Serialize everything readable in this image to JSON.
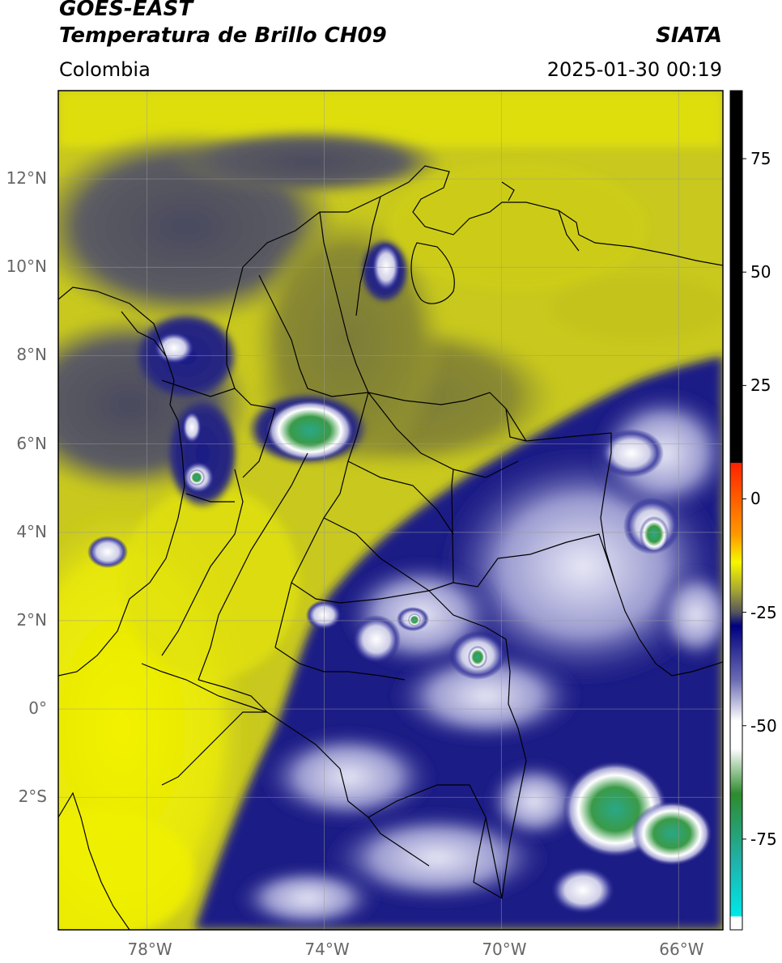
{
  "header": {
    "satellite": "GOES-EAST",
    "product": "Temperatura de Brillo CH09",
    "agency": "SIATA",
    "region": "Colombia",
    "timestamp": "2025-01-30 00:19"
  },
  "map": {
    "lat_ticks": [
      {
        "value": 12,
        "label": "12°N"
      },
      {
        "value": 10,
        "label": "10°N"
      },
      {
        "value": 8,
        "label": "8°N"
      },
      {
        "value": 6,
        "label": "6°N"
      },
      {
        "value": 4,
        "label": "4°N"
      },
      {
        "value": 2,
        "label": "2°N"
      },
      {
        "value": 0,
        "label": "0°"
      },
      {
        "value": -2,
        "label": "2°S"
      }
    ],
    "lon_ticks": [
      {
        "value": -78,
        "label": "78°W"
      },
      {
        "value": -74,
        "label": "74°W"
      },
      {
        "value": -70,
        "label": "70°W"
      },
      {
        "value": -66,
        "label": "66°W"
      }
    ],
    "extent": {
      "lon_min": -80,
      "lon_max": -65,
      "lat_min": -5,
      "lat_max": 14
    }
  },
  "colorbar": {
    "range": [
      -95,
      90
    ],
    "ticks": [
      {
        "value": 75,
        "label": "75"
      },
      {
        "value": 50,
        "label": "50"
      },
      {
        "value": 25,
        "label": "25"
      },
      {
        "value": 0,
        "label": "0"
      },
      {
        "value": -25,
        "label": "-25"
      },
      {
        "value": -50,
        "label": "-50"
      },
      {
        "value": -75,
        "label": "-75"
      }
    ],
    "stops": [
      {
        "value": 90,
        "color": "#000000"
      },
      {
        "value": 8,
        "color": "#000000"
      },
      {
        "value": 7.9,
        "color": "#ff2200"
      },
      {
        "value": -8,
        "color": "#ff9a00"
      },
      {
        "value": -14,
        "color": "#f7f700"
      },
      {
        "value": -20,
        "color": "#a8a832"
      },
      {
        "value": -25,
        "color": "#55555e"
      },
      {
        "value": -28,
        "color": "#000080"
      },
      {
        "value": -40,
        "color": "#6c6cb4"
      },
      {
        "value": -49,
        "color": "#ffffff"
      },
      {
        "value": -55,
        "color": "#ffffff"
      },
      {
        "value": -65,
        "color": "#2e8b2e"
      },
      {
        "value": -80,
        "color": "#20b2aa"
      },
      {
        "value": -92,
        "color": "#00e8e8"
      },
      {
        "value": -92.1,
        "color": "#ffffff"
      },
      {
        "value": -95,
        "color": "#ffffff"
      }
    ]
  },
  "colors": {
    "cold_yellow": "#c8c81e",
    "bright_yellow": "#f2f200",
    "olive": "#8a8a30",
    "gray": "#5c5c62",
    "navy": "#1c1c86",
    "lavender": "#a9a9d6",
    "white": "#ffffff",
    "green": "#3a9a48",
    "teal": "#2aa888",
    "border": "#000000",
    "grid": "#9a9a9a"
  }
}
